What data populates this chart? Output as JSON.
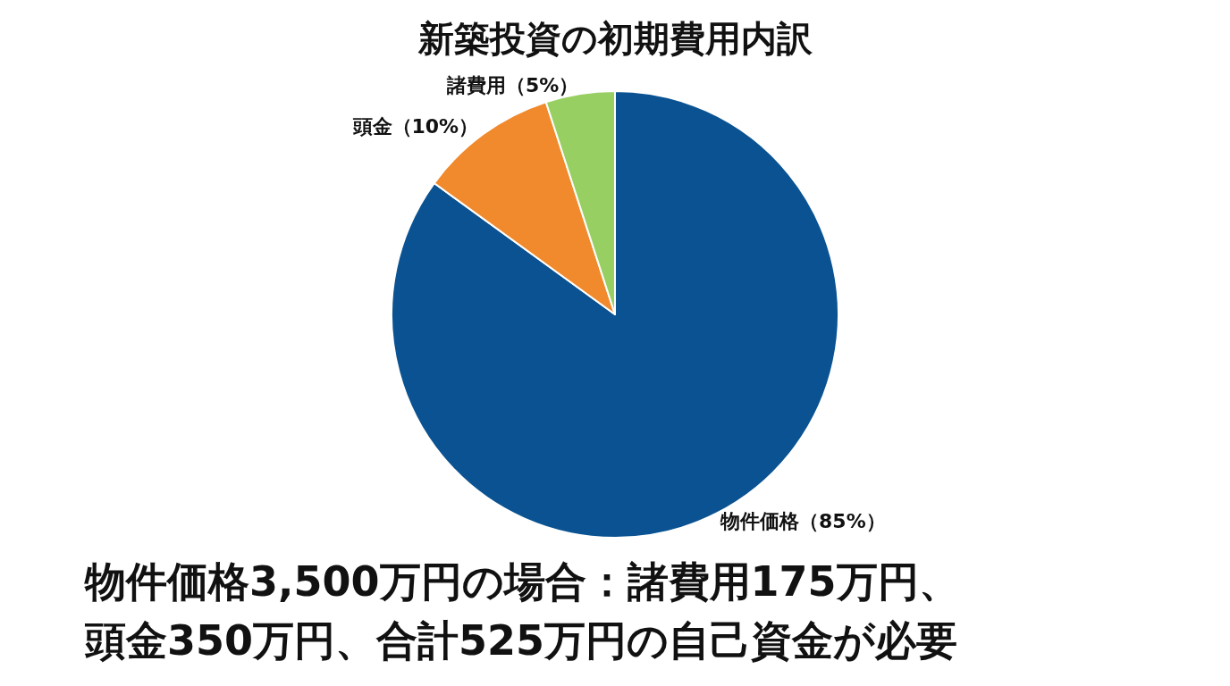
{
  "chart_data": {
    "type": "pie",
    "title": "新築投資の初期費用内訳",
    "categories": [
      "物件価格（85%）",
      "頭金（10%）",
      "諸費用（5%）"
    ],
    "values": [
      85,
      10,
      5
    ],
    "colors": [
      "#0a5291",
      "#f08a2c",
      "#98cf62"
    ],
    "annotations": [
      "物件価格3,500万円の場合：諸費用175万円、",
      "頭金350万円、合計525万円の自己資金が必要"
    ],
    "legend": false
  }
}
